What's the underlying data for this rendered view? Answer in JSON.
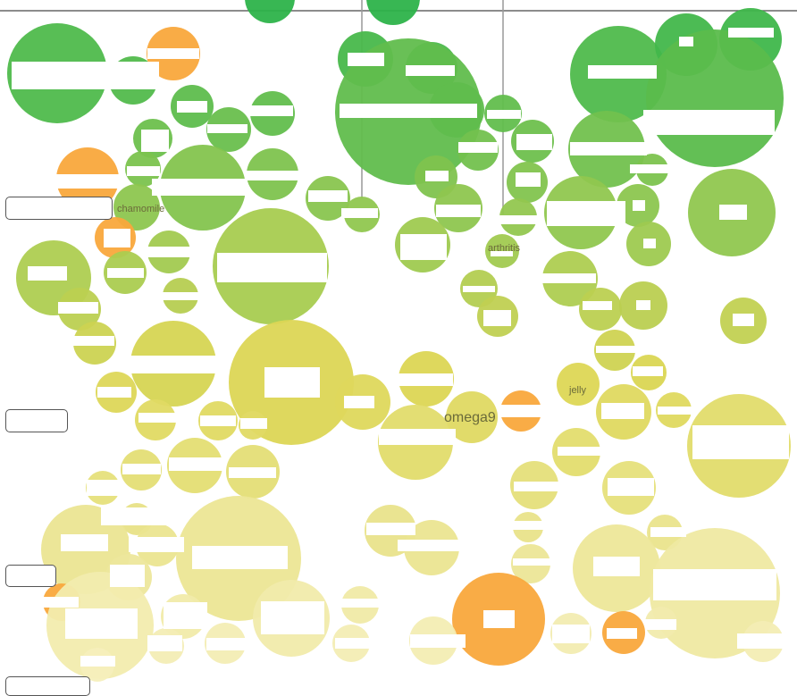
{
  "chart_data": {
    "type": "bubble",
    "visible_labels": [
      {
        "id": "chamomile",
        "text": "chamomile"
      },
      {
        "id": "arthritis",
        "text": "arthritis"
      },
      {
        "id": "jelly",
        "text": "jelly"
      },
      {
        "id": "omega9",
        "text": "omega9"
      }
    ],
    "color_scale": {
      "top": "#2db34a",
      "middle": "#dcd653",
      "bottom": "#f7f1c4",
      "highlight": "#f9a83c"
    },
    "grid": false,
    "legend": "none"
  }
}
